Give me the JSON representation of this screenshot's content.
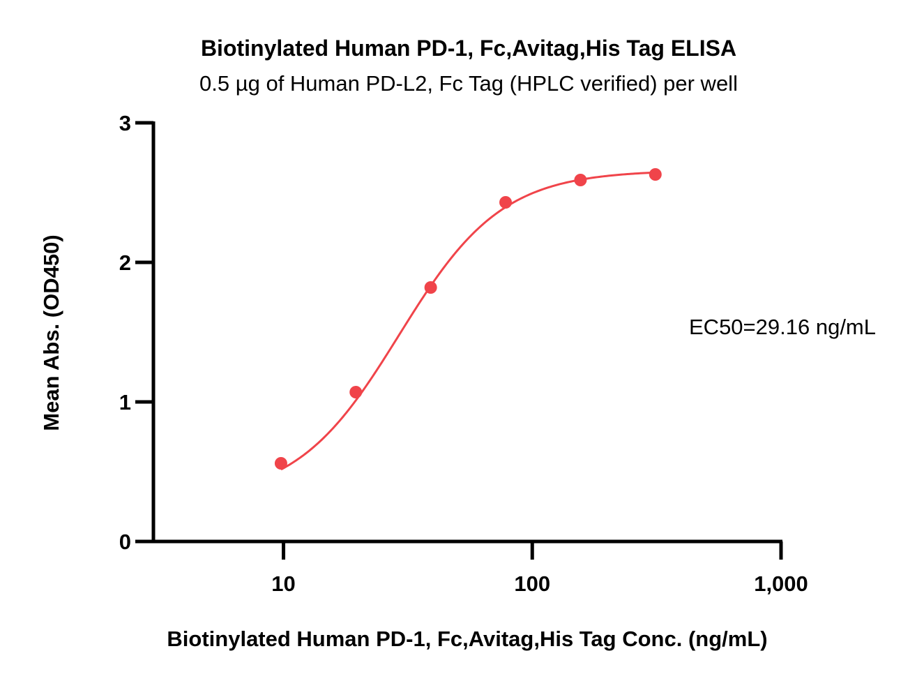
{
  "chart_data": {
    "type": "scatter",
    "title": "Biotinylated Human PD-1, Fc,Avitag,His Tag ELISA",
    "subtitle": "0.5 µg of Human PD-L2, Fc Tag (HPLC verified) per well",
    "xlabel": "Biotinylated Human PD-1, Fc,Avitag,His Tag Conc. (ng/mL)",
    "ylabel": "Mean Abs. (OD450)",
    "x_scale": "log",
    "xlim": [
      3,
      1000
    ],
    "ylim": [
      0,
      3
    ],
    "x_ticks": [
      10,
      100,
      1000
    ],
    "x_tick_labels": [
      "10",
      "100",
      "1,000"
    ],
    "y_ticks": [
      0,
      1,
      2,
      3
    ],
    "y_tick_labels": [
      "0",
      "1",
      "2",
      "3"
    ],
    "grid": false,
    "color": "#f0444a",
    "series": [
      {
        "x": [
          9.77,
          19.53,
          39.06,
          78.13,
          156.25,
          312.5
        ],
        "y": [
          0.56,
          1.07,
          1.82,
          2.43,
          2.59,
          2.63
        ]
      }
    ],
    "fit": {
      "type": "4PL",
      "bottom": 0.3,
      "top": 2.66,
      "ec50": 29.16,
      "hill": 2.1
    },
    "annotation": "EC50=29.16 ng/mL"
  }
}
